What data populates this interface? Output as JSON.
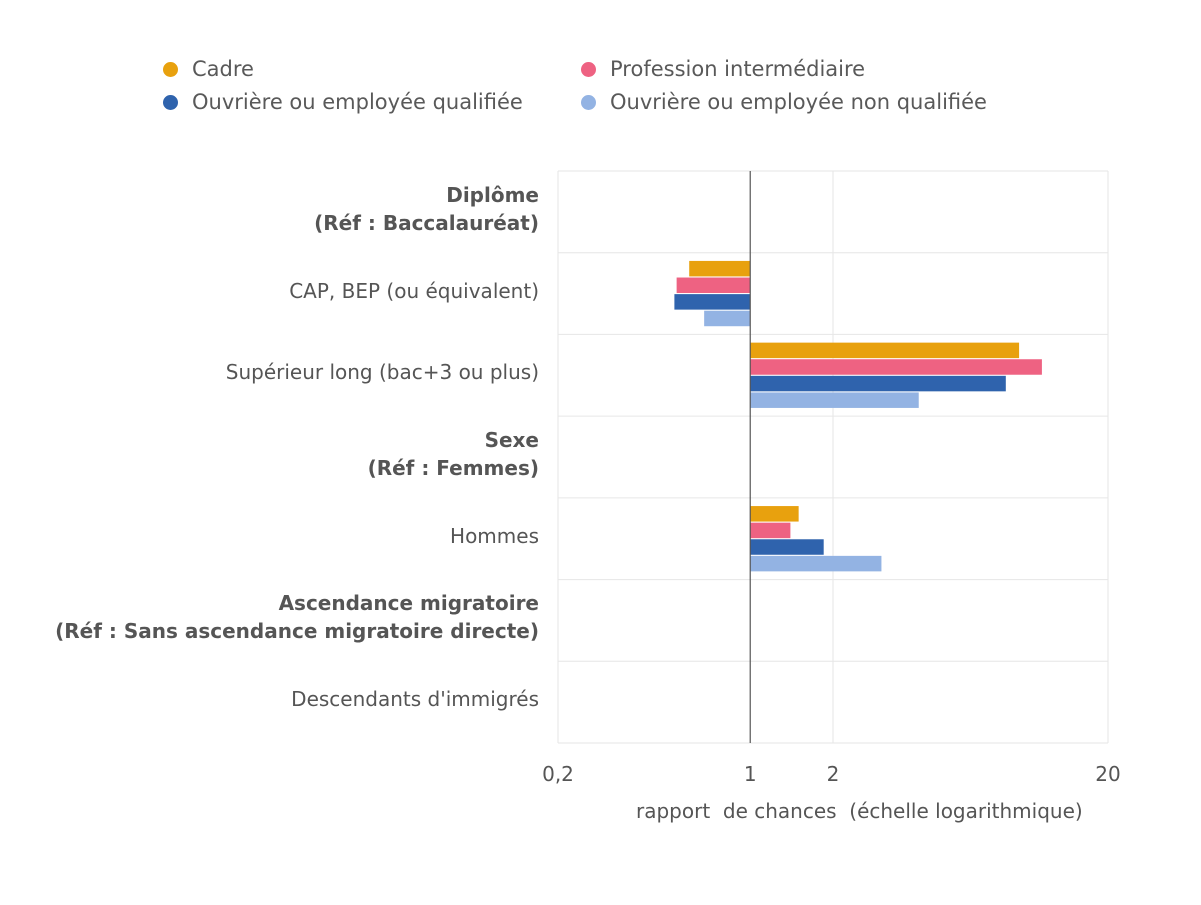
{
  "chart_data": {
    "type": "bar",
    "orientation": "horizontal",
    "x_scale": "log",
    "xlim": [
      0.2,
      20
    ],
    "reference_value": 1,
    "xlabel": "rapport  de chances  (échelle logarithmique)",
    "x_ticks": [
      {
        "value": 0.2,
        "label": "0,2"
      },
      {
        "value": 1,
        "label": "1"
      },
      {
        "value": 2,
        "label": "2"
      },
      {
        "value": 20,
        "label": "20"
      }
    ],
    "legend_position": "top",
    "categories": [
      {
        "id": "diplome",
        "lines": [
          "Diplôme",
          "(Réf : Baccalauréat)"
        ],
        "header": true
      },
      {
        "id": "cap",
        "lines": [
          "CAP, BEP (ou équivalent)"
        ],
        "header": false
      },
      {
        "id": "superieur",
        "lines": [
          "Supérieur long (bac+3 ou plus)"
        ],
        "header": false
      },
      {
        "id": "sexe",
        "lines": [
          "Sexe",
          "(Réf : Femmes)"
        ],
        "header": true
      },
      {
        "id": "hommes",
        "lines": [
          "Hommes"
        ],
        "header": false
      },
      {
        "id": "ascendance",
        "lines": [
          "Ascendance migratoire",
          "(Réf : Sans ascendance migratoire directe)"
        ],
        "header": true
      },
      {
        "id": "descendants",
        "lines": [
          "Descendants d'immigrés"
        ],
        "header": false
      }
    ],
    "series": [
      {
        "name": "Cadre",
        "color": "#E8A10E",
        "values": [
          null,
          0.6,
          9.5,
          null,
          1.5,
          null,
          null
        ]
      },
      {
        "name": "Profession intermédiaire",
        "color": "#EE6282",
        "values": [
          null,
          0.54,
          11.5,
          null,
          1.4,
          null,
          null
        ]
      },
      {
        "name": "Ouvrière ou employée qualifiée",
        "color": "#2F63AD",
        "values": [
          null,
          0.53,
          8.5,
          null,
          1.85,
          null,
          null
        ]
      },
      {
        "name": "Ouvrière ou employée non qualifiée",
        "color": "#93B3E3",
        "values": [
          null,
          0.68,
          4.1,
          null,
          3.0,
          null,
          null
        ]
      }
    ]
  }
}
